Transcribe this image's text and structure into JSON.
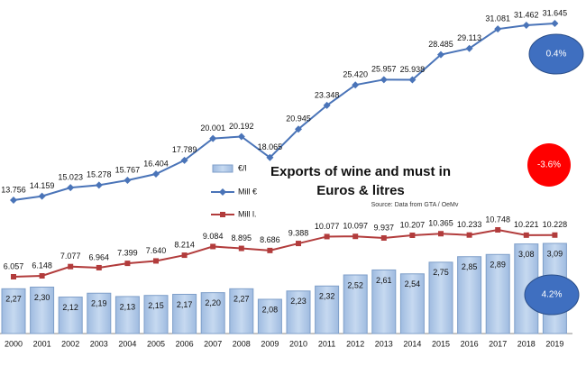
{
  "chart_data": {
    "type": "bar-line",
    "title": "Exports of wine and must in",
    "subtitle": "Euros & litres",
    "source": "Source: Data from GTA / OeMv",
    "categories": [
      "2000",
      "2001",
      "2002",
      "2003",
      "2004",
      "2005",
      "2006",
      "2007",
      "2008",
      "2009",
      "2010",
      "2011",
      "2012",
      "2013",
      "2014",
      "2015",
      "2016",
      "2017",
      "2018",
      "2019"
    ],
    "series": [
      {
        "name": "€/l",
        "type": "bar",
        "color": "#c6d9f0",
        "values": [
          2.27,
          2.3,
          2.12,
          2.19,
          2.13,
          2.15,
          2.17,
          2.2,
          2.27,
          2.08,
          2.23,
          2.32,
          2.52,
          2.61,
          2.54,
          2.75,
          2.85,
          2.89,
          3.08,
          3.09
        ],
        "value_labels": [
          "2,27",
          "2,30",
          "2,12",
          "2,19",
          "2,13",
          "2,15",
          "2,17",
          "2,20",
          "2,27",
          "2,08",
          "2,23",
          "2,32",
          "2,52",
          "2,61",
          "2,54",
          "2,75",
          "2,85",
          "2,89",
          "3,08",
          "3,09"
        ]
      },
      {
        "name": "Mill €",
        "type": "line",
        "color": "#4a74b8",
        "values": [
          13756,
          14159,
          15023,
          15278,
          15767,
          16404,
          17789,
          20001,
          20192,
          18065,
          20945,
          23348,
          25420,
          25957,
          25938,
          28485,
          29113,
          31081,
          31462,
          31645
        ],
        "value_labels": [
          "13.756",
          "14.159",
          "15.023",
          "15.278",
          "15.767",
          "16.404",
          "17.789",
          "20.001",
          "20.192",
          "18.065",
          "20.945",
          "23.348",
          "25.420",
          "25.957",
          "25.938",
          "28.485",
          "29.113",
          "31.081",
          "31.462",
          "31.645"
        ]
      },
      {
        "name": "Mill l.",
        "type": "line",
        "color": "#b23c3c",
        "values": [
          6057,
          6148,
          7077,
          6964,
          7399,
          7640,
          8214,
          9084,
          8895,
          8686,
          9388,
          10077,
          10097,
          9937,
          10207,
          10365,
          10233,
          10748,
          10221,
          10228
        ],
        "value_labels": [
          "6.057",
          "6.148",
          "7.077",
          "6.964",
          "7.399",
          "7.640",
          "8.214",
          "9.084",
          "8.895",
          "8.686",
          "9.388",
          "10.077",
          "10.097",
          "9.937",
          "10.207",
          "10.365",
          "10.233",
          "10.748",
          "10.221",
          "10.228"
        ]
      }
    ],
    "annotations": [
      {
        "text": "0.4%",
        "color": "#3f6fc0"
      },
      {
        "text": "-3.6%",
        "color": "#ff0000"
      },
      {
        "text": "4.2%",
        "color": "#3f6fc0"
      }
    ]
  }
}
